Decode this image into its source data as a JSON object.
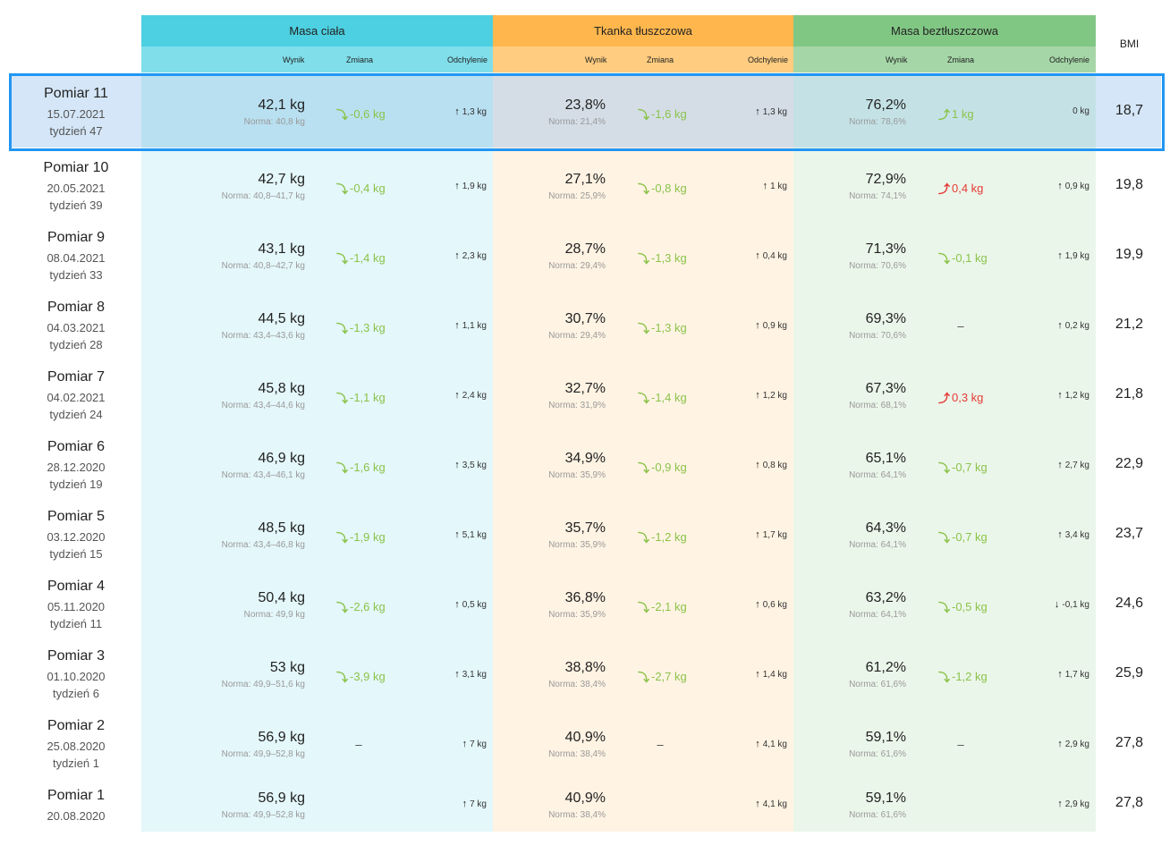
{
  "headers": {
    "masa": "Masa ciała",
    "tkanka": "Tkanka tłuszczowa",
    "beztl": "Masa beztłuszczowa",
    "bmi": "BMI",
    "wynik": "Wynik",
    "zmiana": "Zmiana",
    "odchylenie": "Odchylenie"
  },
  "colors": {
    "masa_header": "#4dd0e1",
    "tkanka_header": "#ffb74d",
    "beztl_header": "#81c784",
    "selection_border": "#2196f3",
    "change_down_green": "#8bc34a",
    "change_up_red": "#e53935"
  },
  "rows": [
    {
      "name": "Pomiar 11",
      "date": "15.07.2021",
      "week": "tydzień 47",
      "masa": {
        "val": "42,1 kg",
        "norm": "Norma: 40,8 kg",
        "chg": "-0,6 kg",
        "chg_dir": "down-green",
        "dev": "1,3 kg",
        "dev_dir": "up"
      },
      "tk": {
        "val": "23,8%",
        "norm": "Norma: 21,4%",
        "chg": "-1,6 kg",
        "chg_dir": "down-green",
        "dev": "1,3 kg",
        "dev_dir": "up"
      },
      "mb": {
        "val": "76,2%",
        "norm": "Norma: 78,6%",
        "chg": "1 kg",
        "chg_dir": "up-green",
        "dev": "0 kg",
        "dev_dir": "none"
      },
      "bmi": "18,7"
    },
    {
      "name": "Pomiar 10",
      "date": "20.05.2021",
      "week": "tydzień 39",
      "masa": {
        "val": "42,7 kg",
        "norm": "Norma: 40,8–41,7 kg",
        "chg": "-0,4 kg",
        "chg_dir": "down-green",
        "dev": "1,9 kg",
        "dev_dir": "up"
      },
      "tk": {
        "val": "27,1%",
        "norm": "Norma: 25,9%",
        "chg": "-0,8 kg",
        "chg_dir": "down-green",
        "dev": "1 kg",
        "dev_dir": "up"
      },
      "mb": {
        "val": "72,9%",
        "norm": "Norma: 74,1%",
        "chg": "0,4 kg",
        "chg_dir": "up-red",
        "dev": "0,9 kg",
        "dev_dir": "up"
      },
      "bmi": "19,8"
    },
    {
      "name": "Pomiar 9",
      "date": "08.04.2021",
      "week": "tydzień 33",
      "masa": {
        "val": "43,1 kg",
        "norm": "Norma: 40,8–42,7 kg",
        "chg": "-1,4 kg",
        "chg_dir": "down-green",
        "dev": "2,3 kg",
        "dev_dir": "up"
      },
      "tk": {
        "val": "28,7%",
        "norm": "Norma: 29,4%",
        "chg": "-1,3 kg",
        "chg_dir": "down-green",
        "dev": "0,4 kg",
        "dev_dir": "up"
      },
      "mb": {
        "val": "71,3%",
        "norm": "Norma: 70,6%",
        "chg": "-0,1 kg",
        "chg_dir": "down-green",
        "dev": "1,9 kg",
        "dev_dir": "up"
      },
      "bmi": "19,9"
    },
    {
      "name": "Pomiar 8",
      "date": "04.03.2021",
      "week": "tydzień 28",
      "masa": {
        "val": "44,5 kg",
        "norm": "Norma: 43,4–43,6 kg",
        "chg": "-1,3 kg",
        "chg_dir": "down-green",
        "dev": "1,1 kg",
        "dev_dir": "up"
      },
      "tk": {
        "val": "30,7%",
        "norm": "Norma: 29,4%",
        "chg": "-1,3 kg",
        "chg_dir": "down-green",
        "dev": "0,9 kg",
        "dev_dir": "up"
      },
      "mb": {
        "val": "69,3%",
        "norm": "Norma: 70,6%",
        "chg": "–",
        "chg_dir": "dash",
        "dev": "0,2 kg",
        "dev_dir": "up"
      },
      "bmi": "21,2"
    },
    {
      "name": "Pomiar 7",
      "date": "04.02.2021",
      "week": "tydzień 24",
      "masa": {
        "val": "45,8 kg",
        "norm": "Norma: 43,4–44,6 kg",
        "chg": "-1,1 kg",
        "chg_dir": "down-green",
        "dev": "2,4 kg",
        "dev_dir": "up"
      },
      "tk": {
        "val": "32,7%",
        "norm": "Norma: 31,9%",
        "chg": "-1,4 kg",
        "chg_dir": "down-green",
        "dev": "1,2 kg",
        "dev_dir": "up"
      },
      "mb": {
        "val": "67,3%",
        "norm": "Norma: 68,1%",
        "chg": "0,3 kg",
        "chg_dir": "up-red",
        "dev": "1,2 kg",
        "dev_dir": "up"
      },
      "bmi": "21,8"
    },
    {
      "name": "Pomiar 6",
      "date": "28.12.2020",
      "week": "tydzień 19",
      "masa": {
        "val": "46,9 kg",
        "norm": "Norma: 43,4–46,1 kg",
        "chg": "-1,6 kg",
        "chg_dir": "down-green",
        "dev": "3,5 kg",
        "dev_dir": "up"
      },
      "tk": {
        "val": "34,9%",
        "norm": "Norma: 35,9%",
        "chg": "-0,9 kg",
        "chg_dir": "down-green",
        "dev": "0,8 kg",
        "dev_dir": "up"
      },
      "mb": {
        "val": "65,1%",
        "norm": "Norma: 64,1%",
        "chg": "-0,7 kg",
        "chg_dir": "down-green",
        "dev": "2,7 kg",
        "dev_dir": "up"
      },
      "bmi": "22,9"
    },
    {
      "name": "Pomiar 5",
      "date": "03.12.2020",
      "week": "tydzień 15",
      "masa": {
        "val": "48,5 kg",
        "norm": "Norma: 43,4–46,8 kg",
        "chg": "-1,9 kg",
        "chg_dir": "down-green",
        "dev": "5,1 kg",
        "dev_dir": "up"
      },
      "tk": {
        "val": "35,7%",
        "norm": "Norma: 35,9%",
        "chg": "-1,2 kg",
        "chg_dir": "down-green",
        "dev": "1,7 kg",
        "dev_dir": "up"
      },
      "mb": {
        "val": "64,3%",
        "norm": "Norma: 64,1%",
        "chg": "-0,7 kg",
        "chg_dir": "down-green",
        "dev": "3,4 kg",
        "dev_dir": "up"
      },
      "bmi": "23,7"
    },
    {
      "name": "Pomiar 4",
      "date": "05.11.2020",
      "week": "tydzień 11",
      "masa": {
        "val": "50,4 kg",
        "norm": "Norma: 49,9 kg",
        "chg": "-2,6 kg",
        "chg_dir": "down-green",
        "dev": "0,5 kg",
        "dev_dir": "up"
      },
      "tk": {
        "val": "36,8%",
        "norm": "Norma: 35,9%",
        "chg": "-2,1 kg",
        "chg_dir": "down-green",
        "dev": "0,6 kg",
        "dev_dir": "up"
      },
      "mb": {
        "val": "63,2%",
        "norm": "Norma: 64,1%",
        "chg": "-0,5 kg",
        "chg_dir": "down-green",
        "dev": "-0,1 kg",
        "dev_dir": "down"
      },
      "bmi": "24,6"
    },
    {
      "name": "Pomiar 3",
      "date": "01.10.2020",
      "week": "tydzień 6",
      "masa": {
        "val": "53 kg",
        "norm": "Norma: 49,9–51,6 kg",
        "chg": "-3,9 kg",
        "chg_dir": "down-green",
        "dev": "3,1 kg",
        "dev_dir": "up"
      },
      "tk": {
        "val": "38,8%",
        "norm": "Norma: 38,4%",
        "chg": "-2,7 kg",
        "chg_dir": "down-green",
        "dev": "1,4 kg",
        "dev_dir": "up"
      },
      "mb": {
        "val": "61,2%",
        "norm": "Norma: 61,6%",
        "chg": "-1,2 kg",
        "chg_dir": "down-green",
        "dev": "1,7 kg",
        "dev_dir": "up"
      },
      "bmi": "25,9"
    },
    {
      "name": "Pomiar 2",
      "date": "25.08.2020",
      "week": "tydzień 1",
      "masa": {
        "val": "56,9 kg",
        "norm": "Norma: 49,9–52,8 kg",
        "chg": "–",
        "chg_dir": "dash",
        "dev": "7 kg",
        "dev_dir": "up"
      },
      "tk": {
        "val": "40,9%",
        "norm": "Norma: 38,4%",
        "chg": "–",
        "chg_dir": "dash",
        "dev": "4,1 kg",
        "dev_dir": "up"
      },
      "mb": {
        "val": "59,1%",
        "norm": "Norma: 61,6%",
        "chg": "–",
        "chg_dir": "dash",
        "dev": "2,9 kg",
        "dev_dir": "up"
      },
      "bmi": "27,8"
    },
    {
      "name": "Pomiar 1",
      "date": "20.08.2020",
      "week": "",
      "masa": {
        "val": "56,9 kg",
        "norm": "Norma: 49,9–52,8 kg",
        "chg": "",
        "chg_dir": "none",
        "dev": "7 kg",
        "dev_dir": "up"
      },
      "tk": {
        "val": "40,9%",
        "norm": "Norma: 38,4%",
        "chg": "",
        "chg_dir": "none",
        "dev": "4,1 kg",
        "dev_dir": "up"
      },
      "mb": {
        "val": "59,1%",
        "norm": "Norma: 61,6%",
        "chg": "",
        "chg_dir": "none",
        "dev": "2,9 kg",
        "dev_dir": "up"
      },
      "bmi": "27,8"
    }
  ]
}
